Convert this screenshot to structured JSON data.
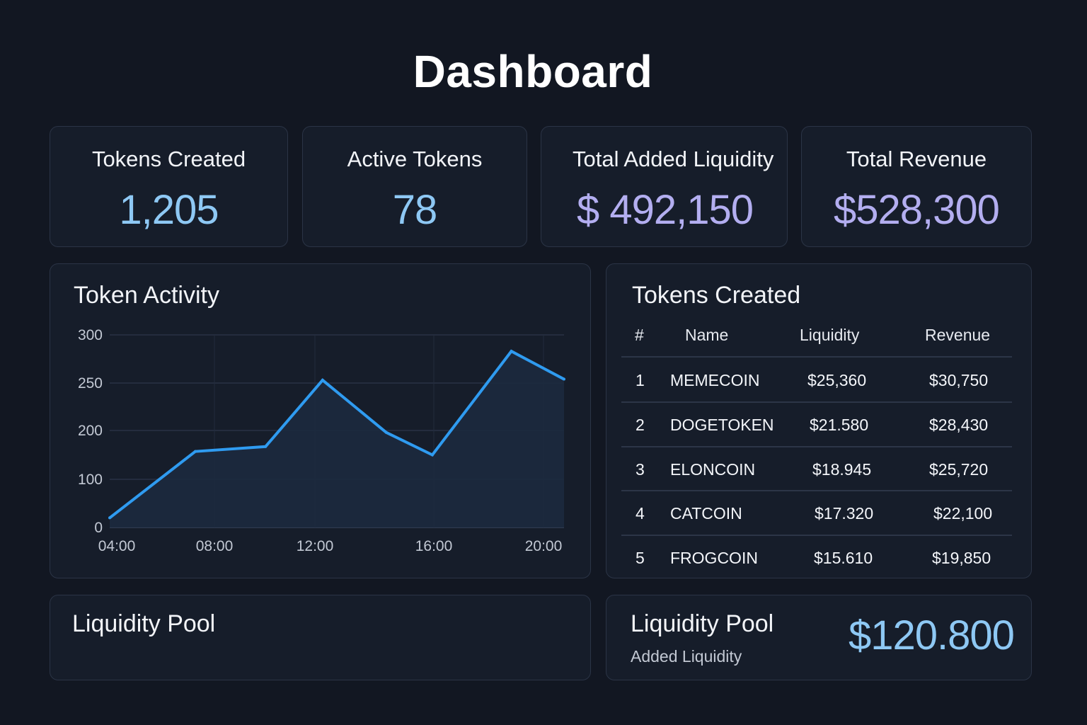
{
  "title": "Dashboard",
  "stats": [
    {
      "label": "Tokens Created",
      "value": "1,205",
      "color": "#8ec8f4"
    },
    {
      "label": "Active Tokens",
      "value": "78",
      "color": "#8ec8f4"
    },
    {
      "label": "Total Added Liquidity",
      "value": "$ 492,150",
      "color": "#b3aef0"
    },
    {
      "label": "Total Revenue",
      "value": "$528,300",
      "color": "#b3aef0"
    }
  ],
  "activity": {
    "title": "Token Activity"
  },
  "chart_data": {
    "type": "area",
    "title": "Token Activity",
    "xlabel": "",
    "ylabel": "",
    "x_ticks": [
      "04:00",
      "08:00",
      "12:00",
      "16:00",
      "20:00"
    ],
    "y_ticks": [
      "300",
      "250",
      "200",
      "100",
      "0"
    ],
    "line_color": "#2f9bf0",
    "grid": true,
    "points": [
      {
        "x": "03:45",
        "y": 20
      },
      {
        "x": "07:00",
        "y": 157
      },
      {
        "x": "09:40",
        "y": 167
      },
      {
        "x": "11:50",
        "y": 253
      },
      {
        "x": "14:15",
        "y": 196
      },
      {
        "x": "16:00",
        "y": 150
      },
      {
        "x": "19:00",
        "y": 283
      },
      {
        "x": "21:00",
        "y": 254
      }
    ]
  },
  "tokens_table": {
    "title": "Tokens Created",
    "headers": {
      "rank": "#",
      "name": "Name",
      "liquidity": "Liquidity",
      "revenue": "Revenue"
    },
    "rows": [
      {
        "rank": "1",
        "name": "MEMECOIN",
        "liquidity": "$25,360",
        "revenue": "$30,750"
      },
      {
        "rank": "2",
        "name": "DOGETOKEN",
        "liquidity": "$21.580",
        "revenue": "$28,430"
      },
      {
        "rank": "3",
        "name": "ELONCOIN",
        "liquidity": "$18.945",
        "revenue": "$25,720"
      },
      {
        "rank": "4",
        "name": "CATCOIN",
        "liquidity": "$17.320",
        "revenue": "$22,100"
      },
      {
        "rank": "5",
        "name": "FROGCOIN",
        "liquidity": "$15.610",
        "revenue": "$19,850"
      }
    ]
  },
  "liquidity_pool_left": {
    "title": "Liquidity Pool"
  },
  "liquidity_pool_right": {
    "title": "Liquidity Pool",
    "subtitle": "Added Liquidity",
    "amount": "$120.800"
  }
}
